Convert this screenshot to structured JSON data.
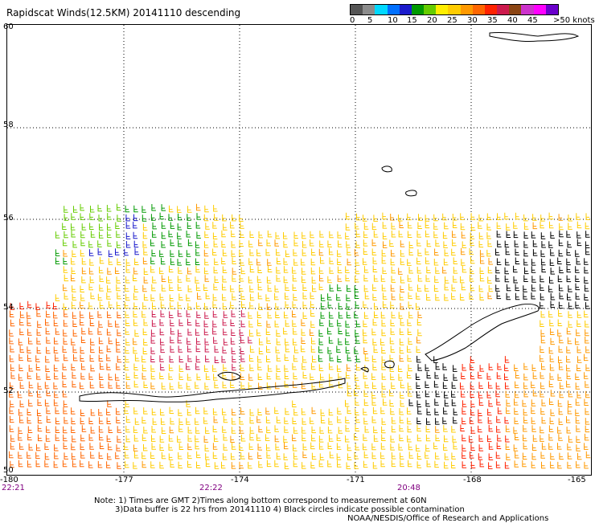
{
  "title": "Rapidscat Winds(12.5KM) 20141110 descending",
  "legend": {
    "labels": [
      "0",
      "5",
      "10",
      "15",
      "20",
      "25",
      "30",
      "35",
      "40",
      "45",
      ">50 knots"
    ],
    "colors": [
      "#555555",
      "#8c8c8c",
      "#00d8ff",
      "#0070ff",
      "#1b1bcc",
      "#009900",
      "#66cc00",
      "#ffee00",
      "#ffcc00",
      "#ff9900",
      "#ff6600",
      "#ff2200",
      "#cc1a4d",
      "#8b4513",
      "#cc33cc",
      "#ff00ff",
      "#6a00cc"
    ]
  },
  "axes": {
    "lat_labels": [
      "60",
      "58",
      "56",
      "54",
      "52",
      "50"
    ],
    "lon_labels": [
      "-180",
      "-177",
      "-174",
      "-171",
      "-168",
      "-165"
    ]
  },
  "times": [
    "22:21",
    "22:22",
    "20:48"
  ],
  "notes": {
    "line1": "Note: 1) Times are GMT 2)Times along bottom correspond to measurement at 60N",
    "line2": "3)Data buffer is 22 hrs from 20141110 4) Black circles indicate possible contamination",
    "credit": "NOAA/NESDIS/Office of Research and Applications"
  }
}
